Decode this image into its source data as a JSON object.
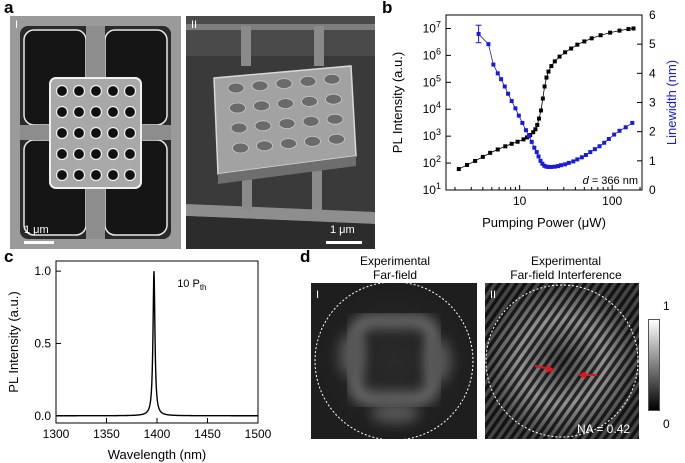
{
  "panels": {
    "a": {
      "letter": "a",
      "left_label": "I",
      "right_label": "II",
      "left_scale": "1 μm",
      "right_scale": "1 μm"
    },
    "b": {
      "letter": "b"
    },
    "c": {
      "letter": "c"
    },
    "d": {
      "letter": "d",
      "left_title": [
        "Experimental",
        "Far-field"
      ],
      "right_title": [
        "Experimental",
        "Far-field Interference"
      ],
      "left_label": "I",
      "right_label": "II",
      "na_text": "NA = 0.42",
      "colorbar_max": "1",
      "colorbar_min": "0",
      "arrow_color": "#e0161b"
    }
  },
  "chart_data": [
    {
      "id": "b",
      "type": "scatter",
      "xlabel": "Pumping Power (μW)",
      "ylabel": "PL Intensity (a.u.)",
      "y2label": "Linewidth (nm)",
      "xscale": "log",
      "yscale": "log",
      "xlim": [
        1.6,
        210
      ],
      "ylim_exp": [
        1,
        7.5
      ],
      "y2lim": [
        0,
        6
      ],
      "xticks": [
        {
          "v": 10,
          "label": "10"
        },
        {
          "v": 100,
          "label": "100"
        }
      ],
      "yticks_exp": [
        1,
        2,
        3,
        4,
        5,
        6,
        7
      ],
      "y2ticks": [
        0,
        1,
        2,
        3,
        4,
        5,
        6
      ],
      "annotation": "d = 366 nm",
      "colors": {
        "intensity": "#000000",
        "linewidth": "#1a1adc"
      },
      "series": [
        {
          "axis": "left",
          "points": [
            [
              2.2,
              60
            ],
            [
              2.7,
              85
            ],
            [
              3.3,
              120
            ],
            [
              4.0,
              170
            ],
            [
              4.8,
              240
            ],
            [
              5.8,
              320
            ],
            [
              7.0,
              420
            ],
            [
              8.2,
              520
            ],
            [
              9.5,
              620
            ],
            [
              11.0,
              760
            ],
            [
              12.0,
              900
            ],
            [
              13.0,
              1100
            ],
            [
              14.0,
              1400
            ],
            [
              14.8,
              1800
            ],
            [
              15.5,
              2600
            ],
            [
              16.2,
              4500
            ],
            [
              17.0,
              9000
            ],
            [
              17.8,
              25000
            ],
            [
              18.6,
              70000
            ],
            [
              19.5,
              150000
            ],
            [
              20.5,
              250000
            ],
            [
              22.0,
              400000
            ],
            [
              24.0,
              600000
            ],
            [
              27.0,
              900000
            ],
            [
              31.0,
              1300000
            ],
            [
              36.0,
              1800000
            ],
            [
              42.0,
              2500000
            ],
            [
              50.0,
              3300000
            ],
            [
              60.0,
              4300000
            ],
            [
              75.0,
              5600000
            ],
            [
              95.0,
              7000000
            ],
            [
              120.0,
              8300000
            ],
            [
              150.0,
              9500000
            ],
            [
              170.0,
              10000000
            ]
          ]
        },
        {
          "axis": "right",
          "points": [
            [
              3.6,
              5.35
            ],
            [
              4.6,
              5.0
            ],
            [
              5.2,
              4.3
            ],
            [
              5.8,
              4.0
            ],
            [
              6.3,
              3.8
            ],
            [
              6.9,
              3.55
            ],
            [
              7.5,
              3.3
            ],
            [
              8.2,
              3.05
            ],
            [
              9.0,
              2.8
            ],
            [
              9.8,
              2.55
            ],
            [
              10.7,
              2.3
            ],
            [
              11.7,
              2.05
            ],
            [
              12.6,
              1.85
            ],
            [
              13.5,
              1.65
            ],
            [
              14.4,
              1.45
            ],
            [
              15.3,
              1.3
            ],
            [
              16.0,
              1.15
            ],
            [
              16.8,
              1.0
            ],
            [
              17.6,
              0.9
            ],
            [
              18.5,
              0.83
            ],
            [
              19.5,
              0.8
            ],
            [
              20.5,
              0.79
            ],
            [
              22.0,
              0.79
            ],
            [
              24.0,
              0.8
            ],
            [
              26.0,
              0.82
            ],
            [
              28.0,
              0.85
            ],
            [
              31.0,
              0.88
            ],
            [
              34.0,
              0.93
            ],
            [
              38.0,
              0.98
            ],
            [
              42.0,
              1.05
            ],
            [
              47.0,
              1.12
            ],
            [
              52.0,
              1.2
            ],
            [
              58.0,
              1.3
            ],
            [
              65.0,
              1.4
            ],
            [
              73.0,
              1.5
            ],
            [
              82.0,
              1.62
            ],
            [
              92.0,
              1.75
            ],
            [
              105.0,
              1.9
            ],
            [
              120.0,
              2.03
            ],
            [
              140.0,
              2.15
            ],
            [
              165.0,
              2.3
            ]
          ]
        }
      ]
    },
    {
      "id": "c",
      "type": "line",
      "xlabel": "Wavelength (nm)",
      "ylabel": "PL Intensity (a.u.)",
      "xlim": [
        1300,
        1500
      ],
      "ylim": [
        -0.05,
        1.07
      ],
      "xticks": [
        1300,
        1350,
        1400,
        1450,
        1500
      ],
      "yticks": [
        {
          "v": 0,
          "label": "0.0"
        },
        {
          "v": 0.5,
          "label": "0.5"
        },
        {
          "v": 1.0,
          "label": "1.0"
        }
      ],
      "annotation_main": "10 P",
      "annotation_sub": "th",
      "peak_center": 1397,
      "peak_fwhm": 2.3,
      "baseline": 0.0,
      "series": [
        {
          "color": "#000000"
        }
      ]
    }
  ]
}
